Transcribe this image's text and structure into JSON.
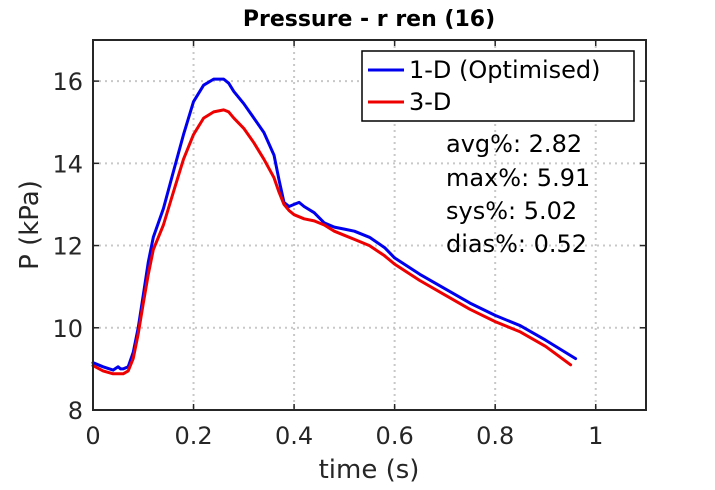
{
  "chart_data": {
    "type": "line",
    "title": "Pressure - r ren (16)",
    "xlabel": "time (s)",
    "ylabel": "P (kPa)",
    "xlim": [
      0,
      1.1
    ],
    "ylim": [
      8,
      17
    ],
    "xticks": [
      0,
      0.2,
      0.4,
      0.6,
      0.8,
      1
    ],
    "xtick_labels": [
      "0",
      "0.2",
      "0.4",
      "0.6",
      "0.8",
      "1"
    ],
    "yticks": [
      8,
      10,
      12,
      14,
      16
    ],
    "ytick_labels": [
      "8",
      "10",
      "12",
      "14",
      "16"
    ],
    "grid": true,
    "legend_position": "top-right",
    "series": [
      {
        "name": "1-D (Optimised)",
        "color": "#0000ee",
        "x": [
          0,
          0.02,
          0.04,
          0.05,
          0.055,
          0.06,
          0.07,
          0.08,
          0.09,
          0.1,
          0.11,
          0.12,
          0.14,
          0.16,
          0.18,
          0.2,
          0.22,
          0.24,
          0.26,
          0.27,
          0.28,
          0.3,
          0.32,
          0.34,
          0.36,
          0.37,
          0.38,
          0.39,
          0.4,
          0.41,
          0.42,
          0.44,
          0.46,
          0.48,
          0.5,
          0.52,
          0.55,
          0.58,
          0.6,
          0.65,
          0.7,
          0.75,
          0.8,
          0.85,
          0.9,
          0.96
        ],
        "y": [
          9.15,
          9.05,
          8.97,
          9.05,
          9.0,
          9.0,
          9.05,
          9.4,
          10.0,
          10.8,
          11.6,
          12.2,
          12.9,
          13.8,
          14.7,
          15.5,
          15.9,
          16.05,
          16.05,
          15.95,
          15.75,
          15.45,
          15.1,
          14.75,
          14.2,
          13.6,
          13.05,
          12.95,
          13.0,
          13.05,
          12.95,
          12.8,
          12.55,
          12.45,
          12.4,
          12.35,
          12.2,
          11.95,
          11.7,
          11.3,
          10.95,
          10.6,
          10.3,
          10.05,
          9.7,
          9.25
        ]
      },
      {
        "name": "3-D",
        "color": "#ee0000",
        "x": [
          0,
          0.02,
          0.04,
          0.05,
          0.06,
          0.07,
          0.08,
          0.09,
          0.1,
          0.11,
          0.12,
          0.14,
          0.16,
          0.18,
          0.2,
          0.22,
          0.24,
          0.26,
          0.27,
          0.28,
          0.3,
          0.32,
          0.34,
          0.36,
          0.37,
          0.38,
          0.39,
          0.4,
          0.42,
          0.44,
          0.46,
          0.48,
          0.5,
          0.52,
          0.55,
          0.58,
          0.6,
          0.65,
          0.7,
          0.75,
          0.8,
          0.85,
          0.9,
          0.95
        ],
        "y": [
          9.08,
          8.95,
          8.88,
          8.88,
          8.88,
          8.95,
          9.25,
          9.85,
          10.6,
          11.3,
          11.9,
          12.5,
          13.3,
          14.1,
          14.7,
          15.1,
          15.25,
          15.3,
          15.25,
          15.1,
          14.85,
          14.5,
          14.1,
          13.65,
          13.3,
          13.0,
          12.85,
          12.75,
          12.65,
          12.6,
          12.5,
          12.35,
          12.25,
          12.15,
          12.0,
          11.75,
          11.55,
          11.15,
          10.8,
          10.45,
          10.15,
          9.9,
          9.55,
          9.1
        ]
      }
    ],
    "annotations": [
      "avg%: 2.82",
      "max%: 5.91",
      "sys%: 5.02",
      "dias%: 0.52"
    ]
  }
}
